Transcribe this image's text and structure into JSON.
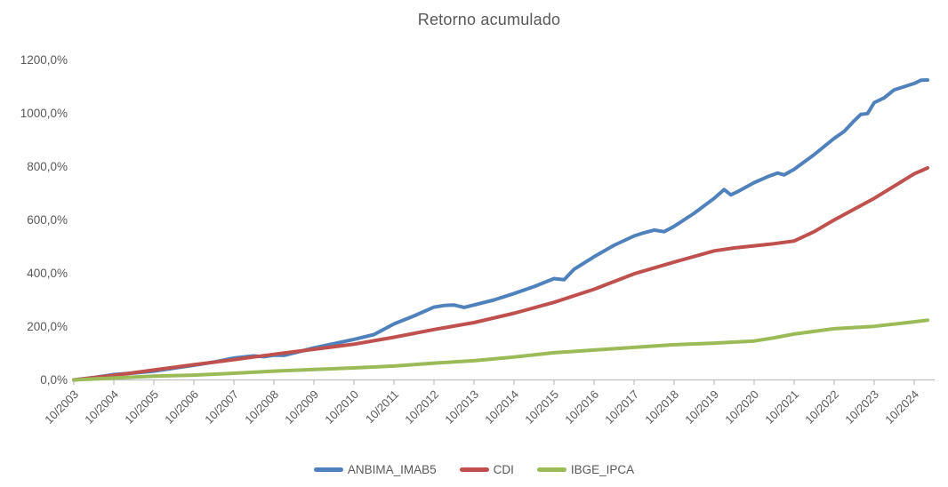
{
  "title": "Retorno acumulado",
  "colors": {
    "text": "#595959",
    "axis": "#BFBFBF",
    "background": "#FFFFFF",
    "series_blue": "#4F81BD",
    "series_red": "#C0504D",
    "series_green": "#9BBB59"
  },
  "chart_data": {
    "type": "line",
    "title": "Retorno acumulado",
    "xlabel": "",
    "ylabel": "",
    "y_unit": "percent",
    "ylim": [
      0,
      1200
    ],
    "y_tick_values": [
      0,
      200,
      400,
      600,
      800,
      1000,
      1200
    ],
    "y_tick_labels": [
      "0,0%",
      "200,0%",
      "400,0%",
      "600,0%",
      "800,0%",
      "1000,0%",
      "1200,0%"
    ],
    "x_unit": "months since 10/2003",
    "x_tick_interval_months": 12,
    "x_tick_labels": [
      "10/2003",
      "10/2004",
      "10/2005",
      "10/2006",
      "10/2007",
      "10/2008",
      "10/2009",
      "10/2010",
      "10/2011",
      "10/2012",
      "10/2013",
      "10/2014",
      "10/2015",
      "10/2016",
      "10/2017",
      "10/2018",
      "10/2019",
      "10/2020",
      "10/2021",
      "10/2022",
      "10/2023",
      "10/2024"
    ],
    "grid": false,
    "legend_position": "bottom",
    "series": [
      {
        "name": "ANBIMA_IMAB5",
        "color": "#4F81BD",
        "points": [
          [
            0,
            0
          ],
          [
            6,
            9
          ],
          [
            12,
            20
          ],
          [
            18,
            26
          ],
          [
            24,
            33
          ],
          [
            30,
            44
          ],
          [
            36,
            55
          ],
          [
            42,
            67
          ],
          [
            48,
            82
          ],
          [
            54,
            90
          ],
          [
            57,
            87
          ],
          [
            60,
            93
          ],
          [
            63,
            92
          ],
          [
            66,
            101
          ],
          [
            72,
            120
          ],
          [
            78,
            136
          ],
          [
            84,
            152
          ],
          [
            90,
            170
          ],
          [
            96,
            210
          ],
          [
            102,
            240
          ],
          [
            108,
            273
          ],
          [
            111,
            279
          ],
          [
            114,
            281
          ],
          [
            117,
            272
          ],
          [
            120,
            281
          ],
          [
            126,
            300
          ],
          [
            132,
            324
          ],
          [
            138,
            350
          ],
          [
            144,
            380
          ],
          [
            147,
            376
          ],
          [
            150,
            415
          ],
          [
            156,
            462
          ],
          [
            162,
            505
          ],
          [
            168,
            540
          ],
          [
            171,
            552
          ],
          [
            174,
            562
          ],
          [
            177,
            556
          ],
          [
            180,
            576
          ],
          [
            186,
            625
          ],
          [
            192,
            681
          ],
          [
            195,
            714
          ],
          [
            197,
            694
          ],
          [
            199,
            706
          ],
          [
            204,
            740
          ],
          [
            208,
            762
          ],
          [
            211,
            776
          ],
          [
            213,
            769
          ],
          [
            216,
            790
          ],
          [
            222,
            845
          ],
          [
            228,
            906
          ],
          [
            231,
            932
          ],
          [
            234,
            972
          ],
          [
            236,
            996
          ],
          [
            238,
            999
          ],
          [
            240,
            1040
          ],
          [
            243,
            1058
          ],
          [
            246,
            1088
          ],
          [
            249,
            1100
          ],
          [
            252,
            1112
          ],
          [
            254,
            1124
          ],
          [
            256,
            1125
          ]
        ]
      },
      {
        "name": "CDI",
        "color": "#C0504D",
        "points": [
          [
            0,
            0
          ],
          [
            12,
            17
          ],
          [
            24,
            37
          ],
          [
            36,
            57
          ],
          [
            48,
            76
          ],
          [
            60,
            96
          ],
          [
            72,
            115
          ],
          [
            84,
            134
          ],
          [
            96,
            160
          ],
          [
            108,
            189
          ],
          [
            120,
            215
          ],
          [
            132,
            250
          ],
          [
            144,
            291
          ],
          [
            156,
            340
          ],
          [
            168,
            398
          ],
          [
            180,
            442
          ],
          [
            192,
            484
          ],
          [
            198,
            495
          ],
          [
            204,
            503
          ],
          [
            210,
            511
          ],
          [
            216,
            521
          ],
          [
            222,
            556
          ],
          [
            228,
            600
          ],
          [
            240,
            681
          ],
          [
            246,
            727
          ],
          [
            252,
            773
          ],
          [
            256,
            795
          ]
        ]
      },
      {
        "name": "IBGE_IPCA",
        "color": "#9BBB59",
        "points": [
          [
            0,
            0
          ],
          [
            12,
            7
          ],
          [
            24,
            14
          ],
          [
            36,
            18
          ],
          [
            48,
            25
          ],
          [
            60,
            33
          ],
          [
            72,
            39
          ],
          [
            84,
            45
          ],
          [
            96,
            52
          ],
          [
            108,
            63
          ],
          [
            120,
            72
          ],
          [
            132,
            86
          ],
          [
            144,
            102
          ],
          [
            156,
            112
          ],
          [
            168,
            122
          ],
          [
            180,
            132
          ],
          [
            192,
            138
          ],
          [
            204,
            146
          ],
          [
            210,
            158
          ],
          [
            216,
            172
          ],
          [
            222,
            182
          ],
          [
            228,
            192
          ],
          [
            240,
            201
          ],
          [
            252,
            218
          ],
          [
            256,
            224
          ]
        ]
      }
    ]
  },
  "legend": {
    "items": [
      {
        "label": "ANBIMA_IMAB5",
        "color": "#4F81BD"
      },
      {
        "label": "CDI",
        "color": "#C0504D"
      },
      {
        "label": "IBGE_IPCA",
        "color": "#9BBB59"
      }
    ]
  }
}
